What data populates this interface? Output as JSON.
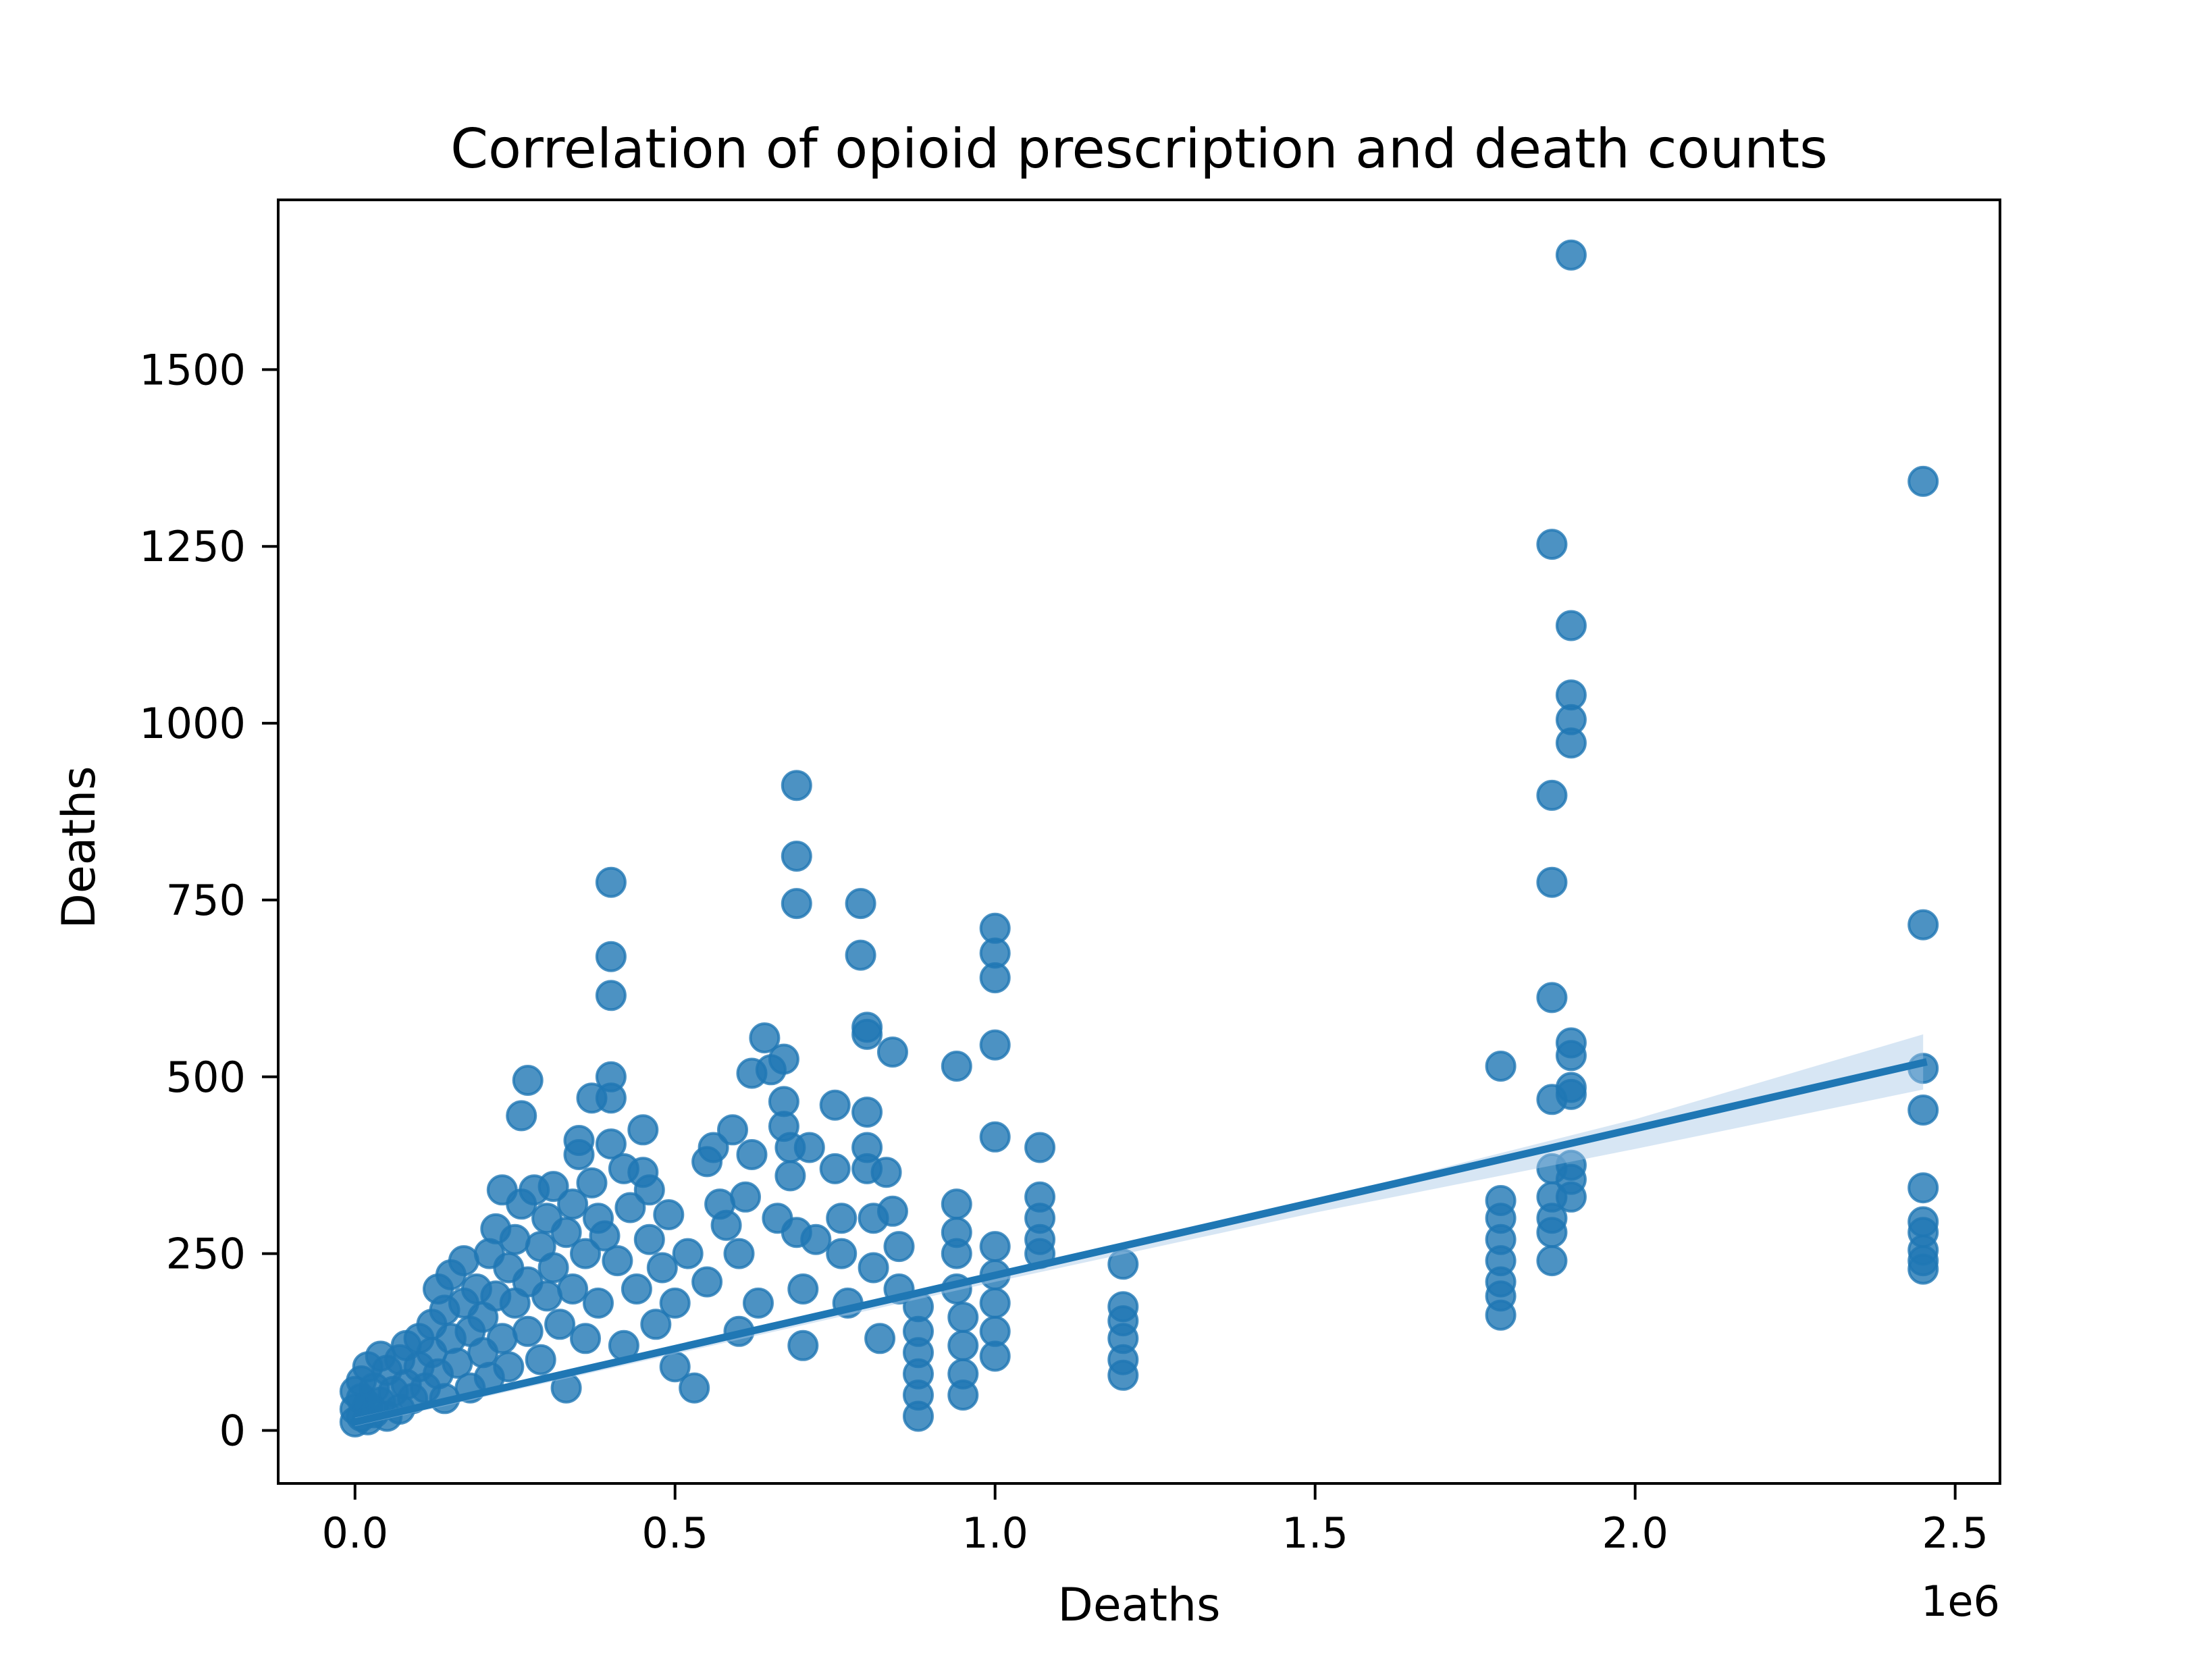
{
  "chart_data": {
    "type": "scatter",
    "title": "Correlation of opioid prescription and death counts",
    "xlabel": "Deaths",
    "ylabel": "Deaths",
    "x_offset_label": "1e6",
    "xlim": [
      -0.12,
      2.57
    ],
    "ylim": [
      -75,
      1740
    ],
    "x_ticks": [
      0.0,
      0.5,
      1.0,
      1.5,
      2.0,
      2.5
    ],
    "x_tick_labels": [
      "0.0",
      "0.5",
      "1.0",
      "1.5",
      "2.0",
      "2.5"
    ],
    "y_ticks": [
      0,
      250,
      500,
      750,
      1000,
      1250,
      1500
    ],
    "y_tick_labels": [
      "0",
      "250",
      "500",
      "750",
      "1000",
      "1250",
      "1500"
    ],
    "grid": false,
    "legend": "none",
    "colors": {
      "points": "#1f77b4",
      "line": "#1f77b4",
      "ci_band": "#a6c8e6"
    },
    "regression_line": {
      "x": [
        0.0,
        2.45
      ],
      "y": [
        12,
        520
      ]
    },
    "confidence_band": {
      "x": [
        0.0,
        0.5,
        1.0,
        1.5,
        2.0,
        2.45
      ],
      "upper": [
        18,
        118,
        222,
        326,
        440,
        560
      ],
      "lower": [
        6,
        108,
        210,
        308,
        398,
        482
      ]
    },
    "series": [
      {
        "points": [
          [
            0.0,
            12
          ],
          [
            0.0,
            30
          ],
          [
            0.0,
            55
          ],
          [
            0.01,
            20
          ],
          [
            0.01,
            45
          ],
          [
            0.01,
            70
          ],
          [
            0.02,
            15
          ],
          [
            0.02,
            35
          ],
          [
            0.02,
            90
          ],
          [
            0.03,
            25
          ],
          [
            0.03,
            60
          ],
          [
            0.04,
            105
          ],
          [
            0.04,
            40
          ],
          [
            0.05,
            20
          ],
          [
            0.05,
            85
          ],
          [
            0.06,
            55
          ],
          [
            0.07,
            100
          ],
          [
            0.07,
            30
          ],
          [
            0.08,
            120
          ],
          [
            0.08,
            65
          ],
          [
            0.09,
            45
          ],
          [
            0.1,
            130
          ],
          [
            0.1,
            90
          ],
          [
            0.11,
            60
          ],
          [
            0.12,
            150
          ],
          [
            0.12,
            110
          ],
          [
            0.13,
            200
          ],
          [
            0.13,
            80
          ],
          [
            0.14,
            170
          ],
          [
            0.14,
            45
          ],
          [
            0.15,
            130
          ],
          [
            0.15,
            220
          ],
          [
            0.16,
            95
          ],
          [
            0.17,
            180
          ],
          [
            0.17,
            240
          ],
          [
            0.18,
            140
          ],
          [
            0.18,
            60
          ],
          [
            0.19,
            200
          ],
          [
            0.2,
            160
          ],
          [
            0.2,
            110
          ],
          [
            0.21,
            250
          ],
          [
            0.21,
            75
          ],
          [
            0.22,
            190
          ],
          [
            0.22,
            285
          ],
          [
            0.23,
            340
          ],
          [
            0.23,
            130
          ],
          [
            0.24,
            230
          ],
          [
            0.24,
            90
          ],
          [
            0.25,
            270
          ],
          [
            0.25,
            180
          ],
          [
            0.26,
            445
          ],
          [
            0.26,
            320
          ],
          [
            0.27,
            495
          ],
          [
            0.27,
            210
          ],
          [
            0.27,
            140
          ],
          [
            0.28,
            340
          ],
          [
            0.29,
            260
          ],
          [
            0.29,
            100
          ],
          [
            0.3,
            300
          ],
          [
            0.3,
            190
          ],
          [
            0.31,
            345
          ],
          [
            0.31,
            230
          ],
          [
            0.32,
            150
          ],
          [
            0.33,
            280
          ],
          [
            0.33,
            60
          ],
          [
            0.34,
            320
          ],
          [
            0.34,
            200
          ],
          [
            0.35,
            390
          ],
          [
            0.35,
            410
          ],
          [
            0.36,
            250
          ],
          [
            0.36,
            130
          ],
          [
            0.37,
            470
          ],
          [
            0.37,
            350
          ],
          [
            0.38,
            300
          ],
          [
            0.38,
            180
          ],
          [
            0.39,
            275
          ],
          [
            0.4,
            775
          ],
          [
            0.4,
            670
          ],
          [
            0.4,
            615
          ],
          [
            0.4,
            500
          ],
          [
            0.4,
            470
          ],
          [
            0.4,
            405
          ],
          [
            0.41,
            240
          ],
          [
            0.42,
            370
          ],
          [
            0.42,
            120
          ],
          [
            0.43,
            315
          ],
          [
            0.44,
            200
          ],
          [
            0.45,
            425
          ],
          [
            0.45,
            365
          ],
          [
            0.46,
            340
          ],
          [
            0.46,
            270
          ],
          [
            0.47,
            150
          ],
          [
            0.48,
            230
          ],
          [
            0.49,
            305
          ],
          [
            0.5,
            180
          ],
          [
            0.5,
            90
          ],
          [
            0.52,
            250
          ],
          [
            0.53,
            60
          ],
          [
            0.55,
            380
          ],
          [
            0.55,
            210
          ],
          [
            0.56,
            400
          ],
          [
            0.57,
            320
          ],
          [
            0.58,
            290
          ],
          [
            0.59,
            425
          ],
          [
            0.6,
            250
          ],
          [
            0.6,
            140
          ],
          [
            0.61,
            330
          ],
          [
            0.62,
            505
          ],
          [
            0.62,
            390
          ],
          [
            0.63,
            180
          ],
          [
            0.64,
            555
          ],
          [
            0.65,
            510
          ],
          [
            0.66,
            300
          ],
          [
            0.67,
            525
          ],
          [
            0.67,
            465
          ],
          [
            0.67,
            430
          ],
          [
            0.68,
            400
          ],
          [
            0.68,
            360
          ],
          [
            0.69,
            912
          ],
          [
            0.69,
            812
          ],
          [
            0.69,
            745
          ],
          [
            0.69,
            280
          ],
          [
            0.7,
            200
          ],
          [
            0.7,
            120
          ],
          [
            0.71,
            400
          ],
          [
            0.72,
            270
          ],
          [
            0.75,
            460
          ],
          [
            0.75,
            370
          ],
          [
            0.76,
            300
          ],
          [
            0.76,
            250
          ],
          [
            0.77,
            180
          ],
          [
            0.79,
            745
          ],
          [
            0.79,
            672
          ],
          [
            0.8,
            570
          ],
          [
            0.8,
            560
          ],
          [
            0.8,
            450
          ],
          [
            0.8,
            400
          ],
          [
            0.8,
            370
          ],
          [
            0.81,
            300
          ],
          [
            0.81,
            230
          ],
          [
            0.82,
            130
          ],
          [
            0.83,
            365
          ],
          [
            0.84,
            535
          ],
          [
            0.84,
            310
          ],
          [
            0.85,
            260
          ],
          [
            0.85,
            200
          ],
          [
            0.88,
            175
          ],
          [
            0.88,
            140
          ],
          [
            0.88,
            110
          ],
          [
            0.88,
            80
          ],
          [
            0.88,
            50
          ],
          [
            0.88,
            20
          ],
          [
            0.94,
            515
          ],
          [
            0.94,
            320
          ],
          [
            0.94,
            280
          ],
          [
            0.94,
            250
          ],
          [
            0.94,
            200
          ],
          [
            0.95,
            160
          ],
          [
            0.95,
            120
          ],
          [
            0.95,
            80
          ],
          [
            0.95,
            50
          ],
          [
            1.0,
            710
          ],
          [
            1.0,
            675
          ],
          [
            1.0,
            640
          ],
          [
            1.0,
            545
          ],
          [
            1.0,
            415
          ],
          [
            1.0,
            260
          ],
          [
            1.0,
            220
          ],
          [
            1.0,
            180
          ],
          [
            1.0,
            140
          ],
          [
            1.0,
            105
          ],
          [
            1.07,
            400
          ],
          [
            1.07,
            330
          ],
          [
            1.07,
            300
          ],
          [
            1.07,
            270
          ],
          [
            1.07,
            250
          ],
          [
            1.2,
            235
          ],
          [
            1.2,
            175
          ],
          [
            1.2,
            155
          ],
          [
            1.2,
            130
          ],
          [
            1.2,
            100
          ],
          [
            1.2,
            78
          ],
          [
            1.79,
            515
          ],
          [
            1.79,
            325
          ],
          [
            1.79,
            300
          ],
          [
            1.79,
            270
          ],
          [
            1.79,
            240
          ],
          [
            1.79,
            210
          ],
          [
            1.79,
            190
          ],
          [
            1.79,
            163
          ],
          [
            1.87,
            1253
          ],
          [
            1.87,
            898
          ],
          [
            1.87,
            775
          ],
          [
            1.87,
            612
          ],
          [
            1.87,
            468
          ],
          [
            1.87,
            370
          ],
          [
            1.87,
            330
          ],
          [
            1.87,
            300
          ],
          [
            1.87,
            280
          ],
          [
            1.87,
            240
          ],
          [
            1.9,
            1662
          ],
          [
            1.9,
            1138
          ],
          [
            1.9,
            1040
          ],
          [
            1.9,
            1005
          ],
          [
            1.9,
            972
          ],
          [
            1.9,
            548
          ],
          [
            1.9,
            530
          ],
          [
            1.9,
            485
          ],
          [
            1.9,
            475
          ],
          [
            1.9,
            375
          ],
          [
            1.9,
            355
          ],
          [
            1.9,
            330
          ],
          [
            2.45,
            1342
          ],
          [
            2.45,
            715
          ],
          [
            2.45,
            512
          ],
          [
            2.45,
            453
          ],
          [
            2.45,
            343
          ],
          [
            2.45,
            295
          ],
          [
            2.45,
            280
          ],
          [
            2.45,
            255
          ],
          [
            2.45,
            240
          ],
          [
            2.45,
            228
          ]
        ]
      }
    ]
  }
}
